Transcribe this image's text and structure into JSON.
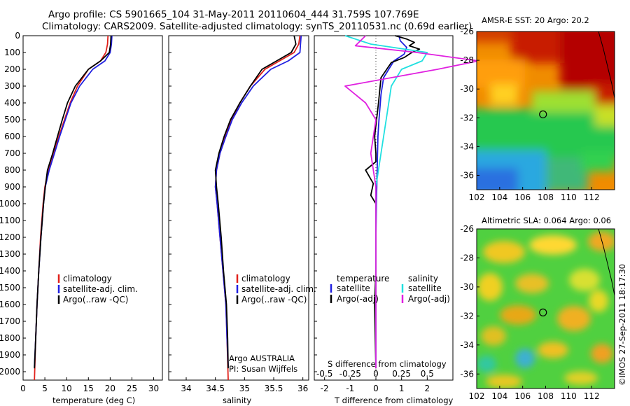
{
  "header": {
    "line1": "Argo profile: CS 5901665_104 31-May-2011 20110604_444 31.759S 107.769E",
    "line2": "Climatology: CARS2009. Satellite-adjusted climatology: synTS_20110531.nc (0.69d earlier)"
  },
  "colors": {
    "climatology": "#e0201a",
    "satellite": "#1f1fe0",
    "argo": "#000000",
    "satellite_salinity": "#20e0e0",
    "argo_salinity": "#e020e0"
  },
  "chart_data": [
    {
      "type": "line",
      "panel": "temperature",
      "xlabel": "temperature (deg C)",
      "ylabel": "",
      "xlim": [
        0,
        32
      ],
      "ylim": [
        2050,
        0
      ],
      "xticks": [
        0,
        5,
        10,
        15,
        20,
        25,
        30
      ],
      "yticks": [
        0,
        100,
        200,
        300,
        400,
        500,
        600,
        700,
        800,
        900,
        1000,
        1100,
        1200,
        1300,
        1400,
        1500,
        1600,
        1700,
        1800,
        1900,
        2000
      ],
      "legend": [
        "climatology",
        "satellite-adj. clim.",
        "Argo(..raw -QC)"
      ],
      "legend_position": "lower-middle",
      "series": [
        {
          "name": "climatology",
          "color": "#e0201a",
          "x": [
            19.5,
            19.4,
            19.0,
            17.8,
            15.0,
            12.5,
            10.8,
            9.5,
            8.2,
            7.0,
            5.8,
            5.0,
            4.6,
            4.0,
            3.6,
            3.2,
            2.9,
            2.6
          ],
          "y": [
            0,
            50,
            100,
            150,
            200,
            300,
            400,
            500,
            600,
            700,
            800,
            900,
            1000,
            1200,
            1400,
            1600,
            1800,
            2050
          ]
        },
        {
          "name": "satellite-adj. clim.",
          "color": "#1f1fe0",
          "x": [
            20.4,
            20.3,
            20.0,
            18.8,
            16.0,
            13.0,
            11.0,
            9.7,
            8.4,
            7.2,
            6.0,
            5.1,
            4.7,
            4.1,
            3.6,
            3.2,
            2.9,
            2.6
          ],
          "y": [
            0,
            50,
            100,
            150,
            200,
            300,
            400,
            500,
            600,
            700,
            800,
            900,
            1000,
            1200,
            1400,
            1600,
            1800,
            1970
          ]
        },
        {
          "name": "Argo(..raw -QC)",
          "color": "#000000",
          "x": [
            20.2,
            20.1,
            19.8,
            17.8,
            15.0,
            12.0,
            10.2,
            9.0,
            7.9,
            6.8,
            5.6,
            5.1,
            4.7,
            4.1,
            3.6,
            3.2,
            2.9,
            2.6
          ],
          "y": [
            0,
            50,
            100,
            150,
            200,
            300,
            400,
            500,
            600,
            700,
            800,
            900,
            1000,
            1200,
            1400,
            1600,
            1800,
            1980
          ]
        }
      ]
    },
    {
      "type": "line",
      "panel": "salinity",
      "xlabel": "salinity",
      "ylabel": "",
      "xlim": [
        33.7,
        36.1
      ],
      "ylim": [
        2050,
        0
      ],
      "xticks": [
        34,
        34.5,
        35,
        35.5,
        36
      ],
      "legend": [
        "climatology",
        "satellite-adj. clim.",
        "Argo(..raw -QC)"
      ],
      "legend_position": "lower-middle",
      "annotation": [
        "Argo AUSTRALIA",
        "PI: Susan Wijffels"
      ],
      "series": [
        {
          "name": "climatology",
          "color": "#e0201a",
          "x": [
            35.95,
            35.93,
            35.85,
            35.6,
            35.35,
            35.1,
            34.92,
            34.78,
            34.67,
            34.58,
            34.52,
            34.5,
            34.53,
            34.58,
            34.63,
            34.68,
            34.7,
            34.72
          ],
          "y": [
            0,
            50,
            100,
            150,
            200,
            300,
            400,
            500,
            600,
            700,
            800,
            900,
            1000,
            1200,
            1400,
            1600,
            1800,
            2050
          ]
        },
        {
          "name": "satellite-adj. clim.",
          "color": "#1f1fe0",
          "x": [
            35.97,
            35.96,
            35.95,
            35.75,
            35.45,
            35.15,
            34.95,
            34.79,
            34.68,
            34.58,
            34.52,
            34.5,
            34.53,
            34.58,
            34.63,
            34.68,
            34.7,
            34.72
          ],
          "y": [
            0,
            50,
            100,
            150,
            200,
            300,
            400,
            500,
            600,
            700,
            800,
            900,
            1000,
            1200,
            1400,
            1600,
            1800,
            1970
          ]
        },
        {
          "name": "Argo(..raw -QC)",
          "color": "#000000",
          "x": [
            35.85,
            35.88,
            35.8,
            35.55,
            35.3,
            35.1,
            34.92,
            34.76,
            34.65,
            34.56,
            34.5,
            34.52,
            34.55,
            34.6,
            34.64,
            34.69,
            34.71,
            34.72
          ],
          "y": [
            0,
            50,
            100,
            150,
            200,
            300,
            400,
            500,
            600,
            700,
            800,
            900,
            1000,
            1200,
            1400,
            1600,
            1800,
            1980
          ]
        }
      ]
    },
    {
      "type": "line",
      "panel": "difference",
      "xlabel": "T difference from climatology",
      "xlabel_top": "S difference from climatology",
      "xlim": [
        -2.4,
        3.0
      ],
      "ylim": [
        2050,
        0
      ],
      "xticks": [
        -2,
        -1,
        0,
        1,
        2
      ],
      "xticks_s": [
        -0.5,
        -0.25,
        0,
        0.25,
        0.5
      ],
      "legend_titles": [
        "temperature",
        "salinity"
      ],
      "legend": [
        "satellite",
        "Argo(-adj)",
        "satellite",
        "Argo(-adj)"
      ],
      "series": [
        {
          "name": "satellite",
          "group": "temperature",
          "color": "#1f1fe0",
          "x": [
            0.9,
            0.95,
            1.2,
            1.1,
            0.7,
            0.3,
            0.2,
            0.12,
            0.08,
            0.05,
            0.02,
            0.0,
            0.0,
            0.0
          ],
          "y": [
            0,
            30,
            70,
            110,
            150,
            250,
            350,
            500,
            600,
            800,
            1000,
            1200,
            1600,
            1970
          ]
        },
        {
          "name": "Argo(-adj)",
          "group": "temperature",
          "color": "#000000",
          "x": [
            0.75,
            1.2,
            1.5,
            1.3,
            1.7,
            1.4,
            1.1,
            0.6,
            0.2,
            0.1,
            -0.05,
            0.0,
            0.0,
            -0.4,
            -0.1,
            -0.2,
            0.0,
            0.0,
            0.0,
            -0.05,
            0.0
          ],
          "y": [
            0,
            20,
            40,
            60,
            80,
            100,
            130,
            160,
            250,
            400,
            600,
            700,
            750,
            800,
            880,
            950,
            1000,
            1100,
            1400,
            1600,
            1980
          ]
        },
        {
          "name": "satellite",
          "group": "salinity",
          "color": "#20e0e0",
          "x": [
            -0.3,
            -0.05,
            0.5,
            0.45,
            0.25,
            0.15,
            0.1,
            0.05,
            0.0,
            0.0,
            0.0
          ],
          "y": [
            0,
            50,
            100,
            150,
            200,
            300,
            500,
            700,
            900,
            1300,
            1970
          ]
        },
        {
          "name": "Argo(-adj)",
          "group": "salinity",
          "color": "#e020e0",
          "x": [
            -0.1,
            -0.2,
            0.4,
            1.0,
            0.6,
            -0.3,
            -0.1,
            0.0,
            -0.05,
            0.0,
            0.0,
            0.0
          ],
          "y": [
            0,
            60,
            100,
            150,
            200,
            300,
            400,
            500,
            700,
            900,
            1300,
            1980
          ]
        }
      ]
    },
    {
      "type": "heatmap",
      "panel": "sst-map",
      "title": "AMSR-E SST: 20 Argo: 20.2",
      "xlim": [
        102,
        114
      ],
      "ylim": [
        -37,
        -26
      ],
      "xticks": [
        102,
        104,
        106,
        108,
        110,
        112
      ],
      "yticks": [
        -26,
        -28,
        -30,
        -32,
        -34,
        -36
      ],
      "marker": {
        "lon": 107.77,
        "lat": -31.76
      }
    },
    {
      "type": "heatmap",
      "panel": "sla-map",
      "title": "Altimetric SLA: 0.064 Argo: 0.06",
      "xlim": [
        102,
        114
      ],
      "ylim": [
        -37,
        -26
      ],
      "xticks": [
        102,
        104,
        106,
        108,
        110,
        112
      ],
      "yticks": [
        -26,
        -28,
        -30,
        -32,
        -34,
        -36
      ],
      "marker": {
        "lon": 107.77,
        "lat": -31.76
      }
    }
  ],
  "footer": {
    "stamp": "©IMOS 27-Sep-2011 18:17:30"
  }
}
